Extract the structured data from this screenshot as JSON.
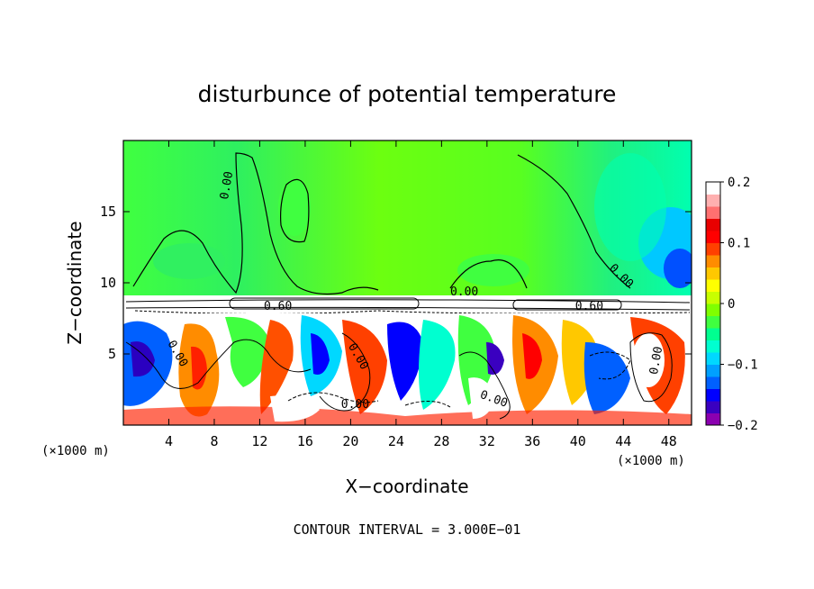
{
  "chart_data": {
    "type": "heatmap",
    "title": "disturbunce of potential temperature",
    "xlabel": "X−coordinate",
    "ylabel": "Z−coordinate",
    "x_unit": "(×1000 m)",
    "x_unit_right": "(×1000 m)",
    "footer": "CONTOUR INTERVAL = 3.000E−01",
    "xlim": [
      0,
      50
    ],
    "ylim": [
      0,
      20
    ],
    "x_ticks": [
      4,
      8,
      12,
      16,
      20,
      24,
      28,
      32,
      36,
      40,
      44,
      48
    ],
    "x_tick_labels": [
      "4",
      "8",
      "12",
      "16",
      "20",
      "24",
      "28",
      "32",
      "36",
      "40",
      "44",
      "48"
    ],
    "y_ticks": [
      5,
      10,
      15
    ],
    "y_tick_labels": [
      "5",
      "10",
      "15"
    ],
    "colorbar": {
      "range": [
        -0.2,
        0.2
      ],
      "ticks": [
        0.2,
        0.1,
        0,
        -0.1,
        -0.2
      ],
      "tick_labels": [
        "0.2",
        "0.1",
        "0",
        "−0.1",
        "−0.2"
      ],
      "colors": [
        "#8b00b0",
        "#3a00c0",
        "#0000ff",
        "#0060ff",
        "#00a0ff",
        "#00d8ff",
        "#00ffd0",
        "#00ff90",
        "#40ff40",
        "#80ff00",
        "#c8ff00",
        "#ffff00",
        "#ffc800",
        "#ff8c00",
        "#ff4000",
        "#ff0000",
        "#e80000",
        "#ff7070",
        "#ffb0b0",
        "#ffffff"
      ]
    },
    "contour_labels": [
      {
        "text": "0.00",
        "x": 9.4,
        "z": 16.8
      },
      {
        "text": "0.00",
        "x": 30.0,
        "z": 9.1
      },
      {
        "text": "0.60",
        "x": 13.6,
        "z": 8.1
      },
      {
        "text": "0.60",
        "x": 41.0,
        "z": 8.1
      },
      {
        "text": "0.00",
        "x": 43.6,
        "z": 10.3
      },
      {
        "text": "0.00",
        "x": 4.5,
        "z": 4.9
      },
      {
        "text": "0.00",
        "x": 20.4,
        "z": 4.7
      },
      {
        "text": "0.00",
        "x": 20.4,
        "z": 1.2
      },
      {
        "text": "0.00",
        "x": 32.5,
        "z": 1.6
      },
      {
        "text": "0.00",
        "x": 47.2,
        "z": 4.5
      }
    ]
  }
}
